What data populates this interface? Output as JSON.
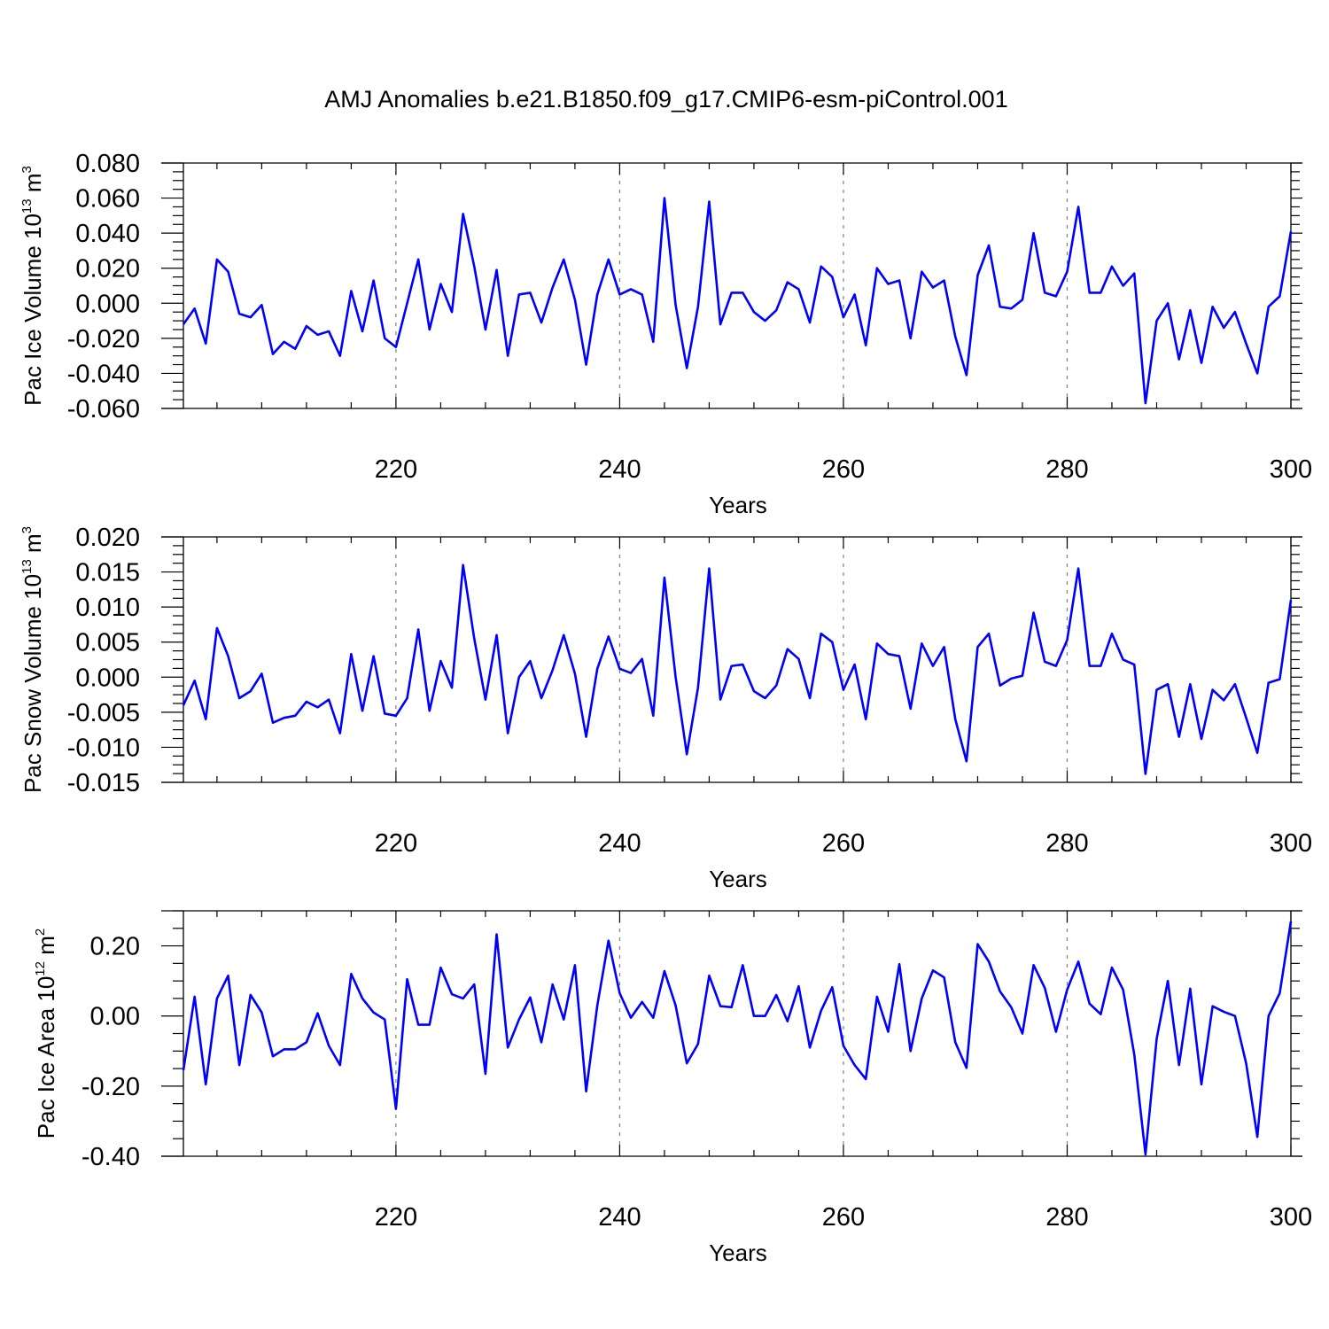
{
  "title": "AMJ Anomalies b.e21.B1850.f09_g17.CMIP6-esm-piControl.001",
  "colors": {
    "series": "#0000ff",
    "axis": "#000000",
    "grid": "#808080"
  },
  "chart_data": [
    {
      "type": "line",
      "ylabel": {
        "main": "Pac Ice Volume 10",
        "exp": "13",
        "unit": " m",
        "unit_exp": "3"
      },
      "xlabel": "Years",
      "xlim": [
        201,
        300
      ],
      "ylim": [
        -0.06,
        0.08
      ],
      "yticks": [
        -0.06,
        -0.04,
        -0.02,
        0.0,
        0.02,
        0.04,
        0.06,
        0.08
      ],
      "ytick_labels": [
        "-0.060",
        "-0.040",
        "-0.020",
        "0.000",
        "0.020",
        "0.040",
        "0.060",
        "0.080"
      ],
      "xticks": [
        220,
        240,
        260,
        280,
        300
      ],
      "xtick_labels": [
        "220",
        "240",
        "260",
        "280",
        "300"
      ],
      "x_start": 201,
      "values": [
        -0.012,
        -0.003,
        -0.023,
        0.025,
        0.018,
        -0.006,
        -0.008,
        -0.001,
        -0.029,
        -0.022,
        -0.026,
        -0.013,
        -0.018,
        -0.016,
        -0.03,
        0.007,
        -0.016,
        0.013,
        -0.02,
        -0.025,
        0.0,
        0.025,
        -0.015,
        0.011,
        -0.005,
        0.051,
        0.021,
        -0.015,
        0.019,
        -0.03,
        0.005,
        0.006,
        -0.011,
        0.009,
        0.025,
        0.002,
        -0.035,
        0.005,
        0.025,
        0.005,
        0.008,
        0.005,
        -0.022,
        0.06,
        -0.001,
        -0.037,
        -0.002,
        0.058,
        -0.012,
        0.006,
        0.006,
        -0.005,
        -0.01,
        -0.004,
        0.012,
        0.008,
        -0.011,
        0.021,
        0.015,
        -0.008,
        0.005,
        -0.024,
        0.02,
        0.011,
        0.013,
        -0.02,
        0.018,
        0.009,
        0.013,
        -0.019,
        -0.041,
        0.016,
        0.033,
        -0.002,
        -0.003,
        0.002,
        0.04,
        0.006,
        0.004,
        0.018,
        0.055,
        0.006,
        0.006,
        0.021,
        0.01,
        0.017,
        -0.057,
        -0.01,
        0.0,
        -0.032,
        -0.004,
        -0.034,
        -0.002,
        -0.014,
        -0.005,
        -0.023,
        -0.04,
        -0.002,
        0.004,
        0.041
      ]
    },
    {
      "type": "line",
      "ylabel": {
        "main": "Pac Snow Volume 10",
        "exp": "13",
        "unit": " m",
        "unit_exp": "3"
      },
      "xlabel": "Years",
      "xlim": [
        201,
        300
      ],
      "ylim": [
        -0.015,
        0.02
      ],
      "yticks": [
        -0.015,
        -0.01,
        -0.005,
        0.0,
        0.005,
        0.01,
        0.015,
        0.02
      ],
      "ytick_labels": [
        "-0.015",
        "-0.010",
        "-0.005",
        "0.000",
        "0.005",
        "0.010",
        "0.015",
        "0.020"
      ],
      "xticks": [
        220,
        240,
        260,
        280,
        300
      ],
      "xtick_labels": [
        "220",
        "240",
        "260",
        "280",
        "300"
      ],
      "x_start": 201,
      "values": [
        -0.004,
        -0.0005,
        -0.006,
        0.007,
        0.003,
        -0.003,
        -0.002,
        0.0005,
        -0.0065,
        -0.0058,
        -0.0055,
        -0.0035,
        -0.0043,
        -0.0032,
        -0.008,
        0.0033,
        -0.0048,
        0.003,
        -0.0052,
        -0.0055,
        -0.003,
        0.0068,
        -0.0048,
        0.0023,
        -0.0015,
        0.016,
        0.0055,
        -0.0032,
        0.006,
        -0.008,
        0.0,
        0.0023,
        -0.003,
        0.001,
        0.006,
        0.0005,
        -0.0085,
        0.0012,
        0.0058,
        0.0012,
        0.0006,
        0.0026,
        -0.0055,
        0.0142,
        0.0,
        -0.011,
        -0.0015,
        0.0155,
        -0.0032,
        0.0016,
        0.0018,
        -0.002,
        -0.003,
        -0.0012,
        0.004,
        0.0026,
        -0.003,
        0.0062,
        0.005,
        -0.0018,
        0.0018,
        -0.006,
        0.0048,
        0.0033,
        0.003,
        -0.0045,
        0.0048,
        0.0016,
        0.0043,
        -0.006,
        -0.012,
        0.0043,
        0.0062,
        -0.0012,
        -0.0002,
        0.0002,
        0.0092,
        0.0022,
        0.0016,
        0.0053,
        0.0155,
        0.0016,
        0.0016,
        0.0062,
        0.0025,
        0.0018,
        -0.0138,
        -0.0018,
        -0.001,
        -0.0085,
        -0.001,
        -0.0088,
        -0.0018,
        -0.0033,
        -0.001,
        -0.0058,
        -0.0108,
        -0.0008,
        -0.0003,
        0.011
      ]
    },
    {
      "type": "line",
      "ylabel": {
        "main": "Pac Ice Area 10",
        "exp": "12",
        "unit": " m",
        "unit_exp": "2"
      },
      "xlabel": "Years",
      "xlim": [
        201,
        300
      ],
      "ylim": [
        -0.4,
        0.3
      ],
      "yticks": [
        -0.4,
        -0.2,
        0.0,
        0.2
      ],
      "ytick_labels": [
        "-0.40",
        "-0.20",
        "0.00",
        "0.20"
      ],
      "xticks": [
        220,
        240,
        260,
        280,
        300
      ],
      "xtick_labels": [
        "220",
        "240",
        "260",
        "280",
        "300"
      ],
      "x_start": 201,
      "values": [
        -0.155,
        0.055,
        -0.195,
        0.05,
        0.115,
        -0.14,
        0.06,
        0.01,
        -0.115,
        -0.095,
        -0.095,
        -0.075,
        0.008,
        -0.085,
        -0.14,
        0.12,
        0.05,
        0.01,
        -0.01,
        -0.265,
        0.105,
        -0.025,
        -0.025,
        0.138,
        0.062,
        0.05,
        0.09,
        -0.165,
        0.233,
        -0.09,
        -0.01,
        0.053,
        -0.075,
        0.09,
        -0.01,
        0.145,
        -0.215,
        0.03,
        0.215,
        0.065,
        -0.005,
        0.04,
        -0.005,
        0.128,
        0.03,
        -0.135,
        -0.08,
        0.115,
        0.028,
        0.025,
        0.145,
        0.0,
        0.0,
        0.06,
        -0.015,
        0.085,
        -0.09,
        0.015,
        0.082,
        -0.085,
        -0.14,
        -0.18,
        0.055,
        -0.045,
        0.148,
        -0.1,
        0.05,
        0.13,
        0.11,
        -0.075,
        -0.148,
        0.205,
        0.155,
        0.07,
        0.025,
        -0.05,
        0.145,
        0.08,
        -0.045,
        0.075,
        0.155,
        0.035,
        0.005,
        0.138,
        0.075,
        -0.11,
        -0.395,
        -0.065,
        0.1,
        -0.14,
        0.078,
        -0.195,
        0.028,
        0.012,
        0.0,
        -0.135,
        -0.345,
        0.0,
        0.065,
        0.27
      ]
    }
  ]
}
